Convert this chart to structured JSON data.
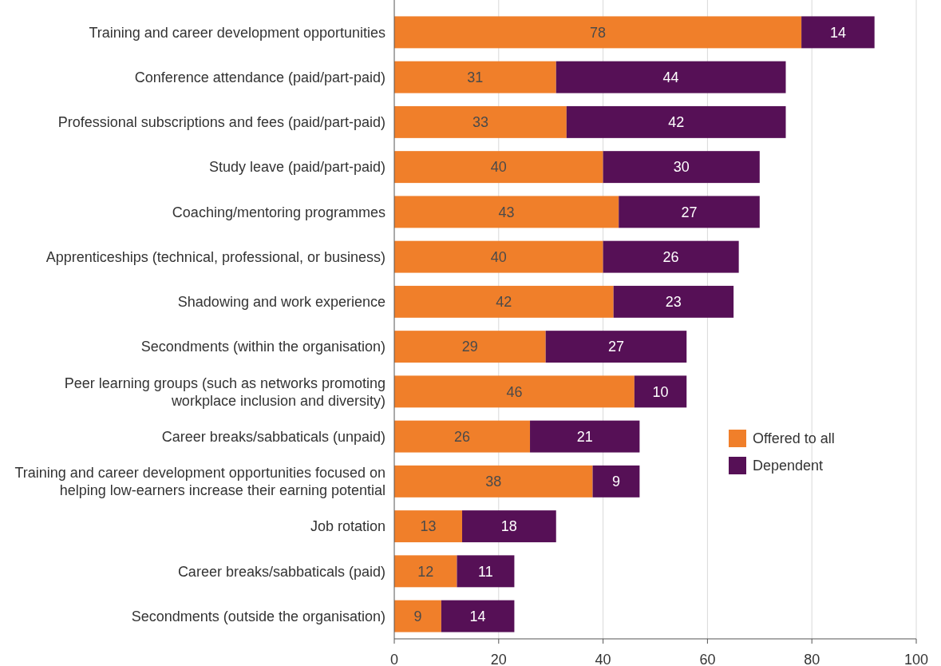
{
  "chart_data": {
    "type": "bar",
    "orientation": "horizontal",
    "stacked": true,
    "categories": [
      "Training and career development opportunities",
      "Conference attendance (paid/part-paid)",
      "Professional subscriptions and fees (paid/part-paid)",
      "Study leave (paid/part-paid)",
      "Coaching/mentoring programmes",
      "Apprenticeships (technical, professional, or business)",
      "Shadowing and work experience",
      "Secondments (within the organisation)",
      "Peer learning groups (such as networks promoting workplace inclusion and diversity)",
      "Career breaks/sabbaticals (unpaid)",
      "Training and career development opportunities focused on helping low-earners increase their earning potential",
      "Job rotation",
      "Career breaks/sabbaticals (paid)",
      "Secondments (outside the organisation)"
    ],
    "series": [
      {
        "name": "Offered to all",
        "color": "#f07f2a",
        "values": [
          78,
          31,
          33,
          40,
          43,
          40,
          42,
          29,
          46,
          26,
          38,
          13,
          12,
          9
        ]
      },
      {
        "name": "Dependent",
        "color": "#561056",
        "values": [
          14,
          44,
          42,
          30,
          27,
          26,
          23,
          27,
          10,
          21,
          9,
          18,
          11,
          14
        ]
      }
    ],
    "xlim": [
      0,
      100
    ],
    "xticks": [
      0,
      20,
      40,
      60,
      80,
      100
    ],
    "grid": "x",
    "legend": "right",
    "data_labels": true
  }
}
